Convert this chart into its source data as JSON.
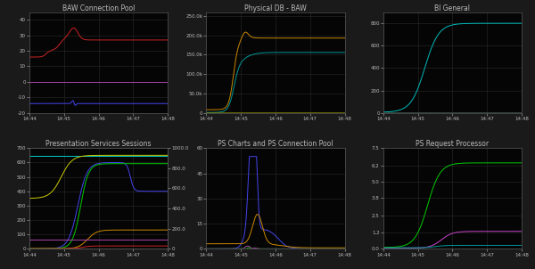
{
  "bg_color": "#1a1a1a",
  "plot_bg": "#050505",
  "grid_color": "#2a2a2a",
  "text_color": "#bbbbbb",
  "title_fontsize": 5.5,
  "tick_fontsize": 4.0,
  "x_ticks": [
    "14:44",
    "14:45",
    "14:46",
    "14:47",
    "14:48"
  ],
  "titles": [
    "BAW Connection Pool",
    "Physical DB - BAW",
    "BI General",
    "Presentation Services Sessions",
    "PS Charts and PS Connection Pool",
    "PS Request Processor"
  ]
}
